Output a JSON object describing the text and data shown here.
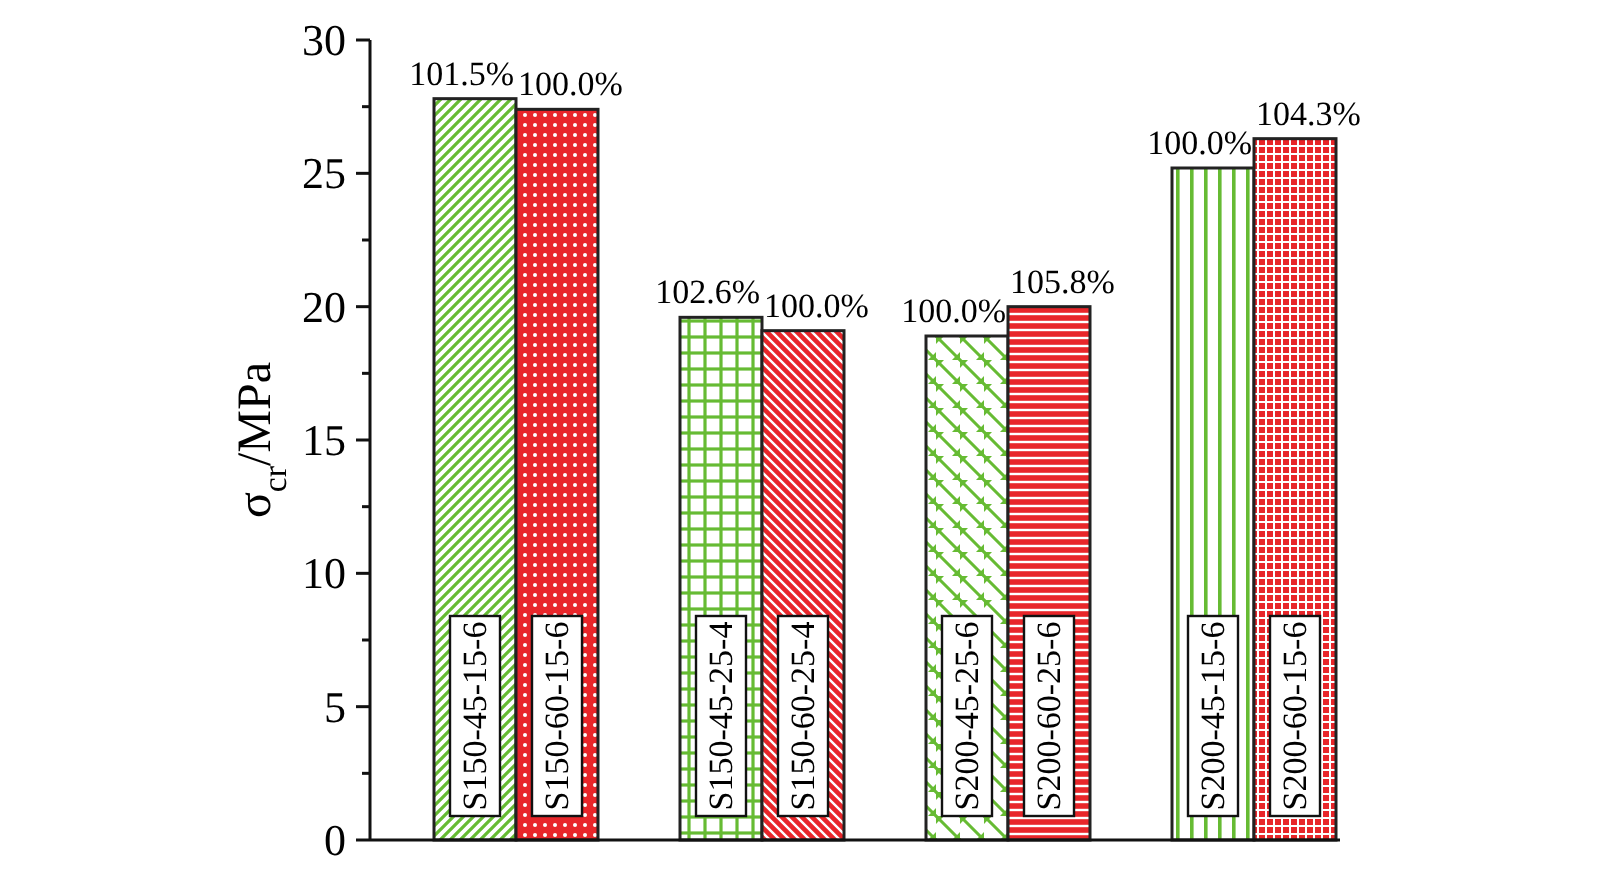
{
  "chart_data": {
    "type": "bar",
    "ylabel": "σ$_{cr}$/MPa",
    "categories": [
      "S150-45-15-6",
      "S150-60-15-6",
      "S150-45-25-4",
      "S150-60-25-4",
      "S200-45-25-6",
      "S200-60-25-6",
      "S200-45-15-6",
      "S200-60-15-6"
    ],
    "values": [
      27.8,
      27.4,
      19.6,
      19.1,
      18.9,
      20.0,
      25.2,
      26.3
    ],
    "colors": [
      "#66bb33",
      "#e8262a",
      "#66bb33",
      "#e8262a",
      "#66bb33",
      "#e8262a",
      "#66bb33",
      "#e8262a"
    ],
    "annotations": [
      {
        "text": "101.5%",
        "x": "S150-45-15-6",
        "y": 27.8
      },
      {
        "text": "100.0%",
        "x": "S150-60-15-6",
        "y": 27.4
      },
      {
        "text": "102.6%",
        "x": "S150-45-25-4",
        "y": 19.6
      },
      {
        "text": "100.0%",
        "x": "S150-60-25-4",
        "y": 19.1
      },
      {
        "text": "100.0%",
        "x": "S200-45-25-6",
        "y": 18.9
      },
      {
        "text": "105.8%",
        "x": "S200-60-25-6",
        "y": 20.0
      },
      {
        "text": "100.0%",
        "x": "S200-45-15-6",
        "y": 25.2
      },
      {
        "text": "104.3%",
        "x": "S200-60-15-6",
        "y": 26.3
      }
    ],
    "ylim": [
      0,
      30
    ],
    "yticks": [
      0,
      {
        "value": 2.5,
        "label": null
      },
      5,
      {
        "value": 7.5,
        "label": null
      },
      10,
      {
        "value": 12.5,
        "label": null
      },
      15,
      {
        "value": 17.5,
        "label": null
      },
      20,
      {
        "value": 22.5,
        "label": null
      },
      25,
      {
        "value": 27.5,
        "label": null
      },
      30
    ],
    "grid": false
  }
}
